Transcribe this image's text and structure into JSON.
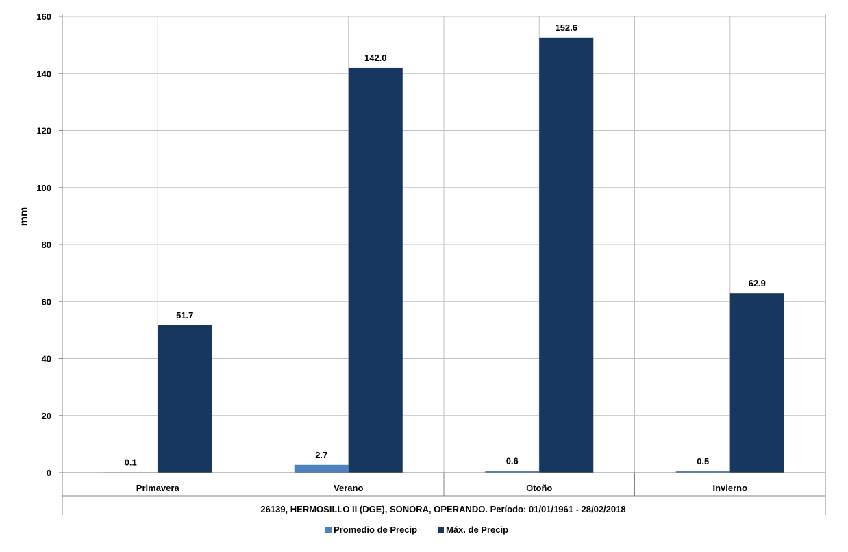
{
  "chart_data": {
    "type": "bar",
    "categories": [
      "Primavera",
      "Verano",
      "Otoño",
      "Invierno"
    ],
    "series": [
      {
        "name": "Promedio de Precip",
        "values": [
          0.1,
          2.7,
          0.6,
          0.5
        ],
        "color": "#4f81bd"
      },
      {
        "name": "Máx. de Precip",
        "values": [
          51.7,
          142.0,
          152.6,
          62.9
        ],
        "color": "#17375e"
      }
    ],
    "data_labels": [
      [
        "0.1",
        "2.7",
        "0.6",
        "0.5"
      ],
      [
        "51.7",
        "142.0",
        "152.6",
        "62.9"
      ]
    ],
    "ylabel": "mm",
    "ylim": [
      0,
      160
    ],
    "yticks": [
      0,
      20,
      40,
      60,
      80,
      100,
      120,
      140,
      160
    ],
    "xlabel": "26139, HERMOSILLO II (DGE), SONORA, OPERANDO. Período: 01/01/1961 - 28/02/2018",
    "grid": true,
    "legend_position": "bottom"
  }
}
